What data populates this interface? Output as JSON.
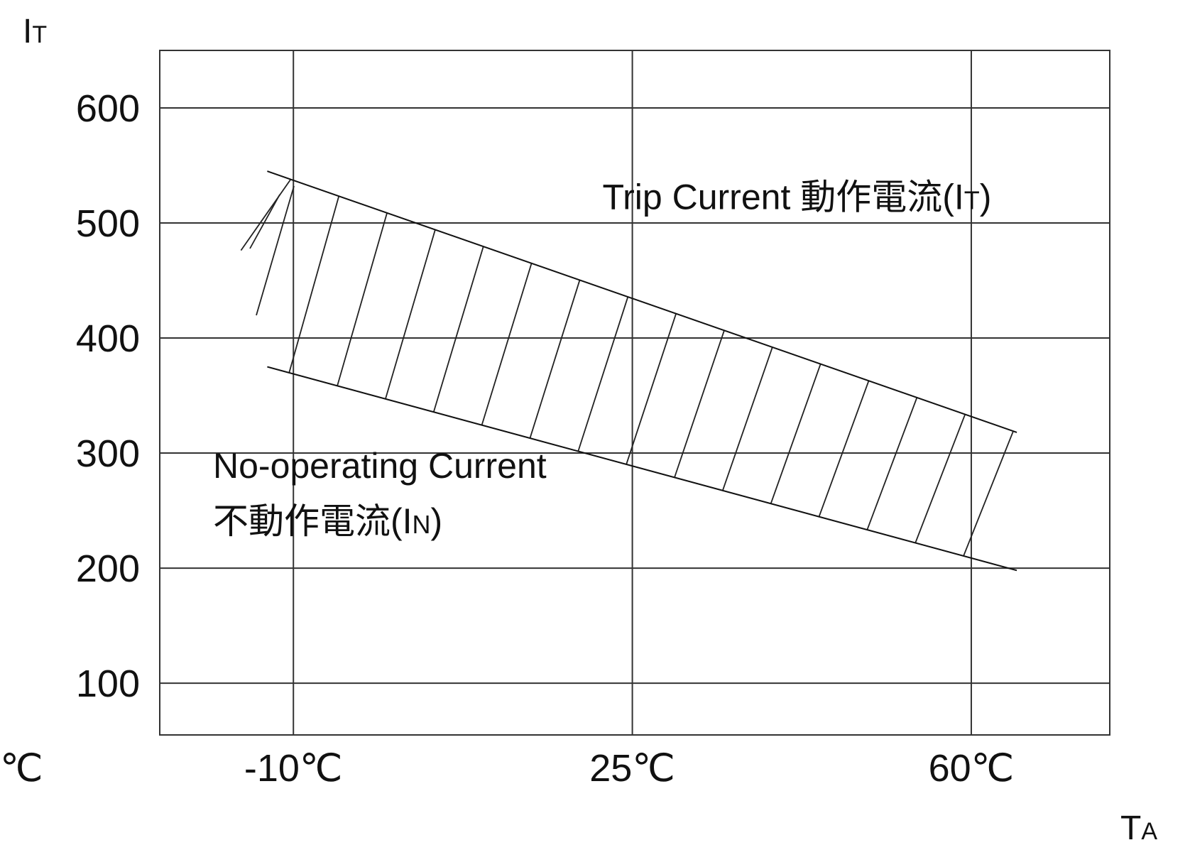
{
  "chart_data": {
    "type": "line",
    "title": "",
    "ylabel": "I",
    "ylabel_sub": "T",
    "xlabel": "T",
    "xlabel_sub": "A",
    "left_edge_label": "℃",
    "x_ticks": [
      {
        "value": -10,
        "label": "-10℃"
      },
      {
        "value": 25,
        "label": "25℃"
      },
      {
        "value": 60,
        "label": "60℃"
      }
    ],
    "y_ticks": [
      100,
      200,
      300,
      400,
      500,
      600
    ],
    "xlim": [
      -23.8,
      74.3
    ],
    "ylim": [
      55,
      650
    ],
    "grid": true,
    "series": [
      {
        "key": "trip",
        "x": [
          -12.7,
          64.7
        ],
        "y": [
          545,
          318
        ]
      },
      {
        "key": "no_operating",
        "x": [
          -12.7,
          64.7
        ],
        "y": [
          375,
          198
        ]
      }
    ],
    "annotations": [
      {
        "key": "trip_label",
        "text": "Trip Current 動作電流(I",
        "sub": "T",
        "suffix": ")",
        "x": 42,
        "y": 512
      },
      {
        "key": "no_operating_label",
        "line1": "No-operating Current",
        "line2": "不動作電流(I",
        "sub": "N",
        "suffix": ")",
        "x": -18.3,
        "y": 282
      }
    ]
  }
}
